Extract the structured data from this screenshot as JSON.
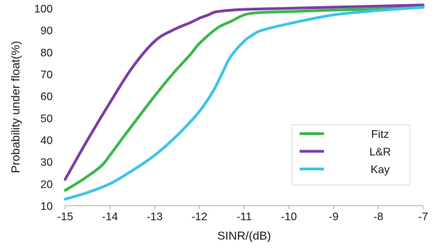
{
  "chart_data": {
    "type": "line",
    "title": "",
    "xlabel": "SINR/(dB)",
    "ylabel": "Probability under float(%)",
    "xlim": [
      -15,
      -7
    ],
    "ylim": [
      10,
      100
    ],
    "x_ticks": [
      -15,
      -14,
      -13,
      -12,
      -11,
      -10,
      -9,
      -8,
      -7
    ],
    "x_tick_labels": [
      "-15",
      "-14",
      "-13",
      "-12",
      "-11",
      "-10",
      "-9",
      "-8",
      "-7"
    ],
    "y_ticks": [
      10,
      20,
      30,
      40,
      50,
      60,
      70,
      80,
      90,
      100
    ],
    "y_tick_labels": [
      "10",
      "20",
      "30",
      "40",
      "50",
      "60",
      "70",
      "80",
      "90",
      "100"
    ],
    "grid": false,
    "legend_position": "bottom-right",
    "series": [
      {
        "name": "Fitz",
        "color": "#3cb84a",
        "x": [
          -15,
          -14.6,
          -14.2,
          -14,
          -13.6,
          -13,
          -12.6,
          -12.2,
          -12,
          -11.6,
          -11.3,
          -11,
          -10.7,
          -10,
          -9,
          -8,
          -7
        ],
        "y": [
          17,
          22,
          28,
          33,
          44,
          60,
          70,
          79,
          84,
          91,
          94,
          97,
          98,
          98.5,
          99.2,
          99.7,
          100.5
        ]
      },
      {
        "name": "L&R",
        "color": "#7a3fa6",
        "x": [
          -15,
          -14.5,
          -14,
          -13.5,
          -13,
          -12.6,
          -12.2,
          -12,
          -11.8,
          -11.6,
          -11,
          -10,
          -9,
          -8,
          -7
        ],
        "y": [
          22,
          40,
          57,
          73,
          85,
          90,
          93.5,
          95.5,
          97,
          98.5,
          99.5,
          100,
          100.5,
          101,
          101.5
        ]
      },
      {
        "name": "Kay",
        "color": "#3fc3e9",
        "x": [
          -15,
          -14.5,
          -14,
          -13.5,
          -13,
          -12.5,
          -12,
          -11.7,
          -11.5,
          -11.3,
          -11,
          -10.8,
          -10.6,
          -10,
          -9,
          -8,
          -7
        ],
        "y": [
          13,
          16,
          20,
          26,
          33,
          42,
          53,
          62,
          70,
          78,
          85,
          88,
          90,
          93,
          97,
          99,
          100.5
        ]
      }
    ]
  }
}
